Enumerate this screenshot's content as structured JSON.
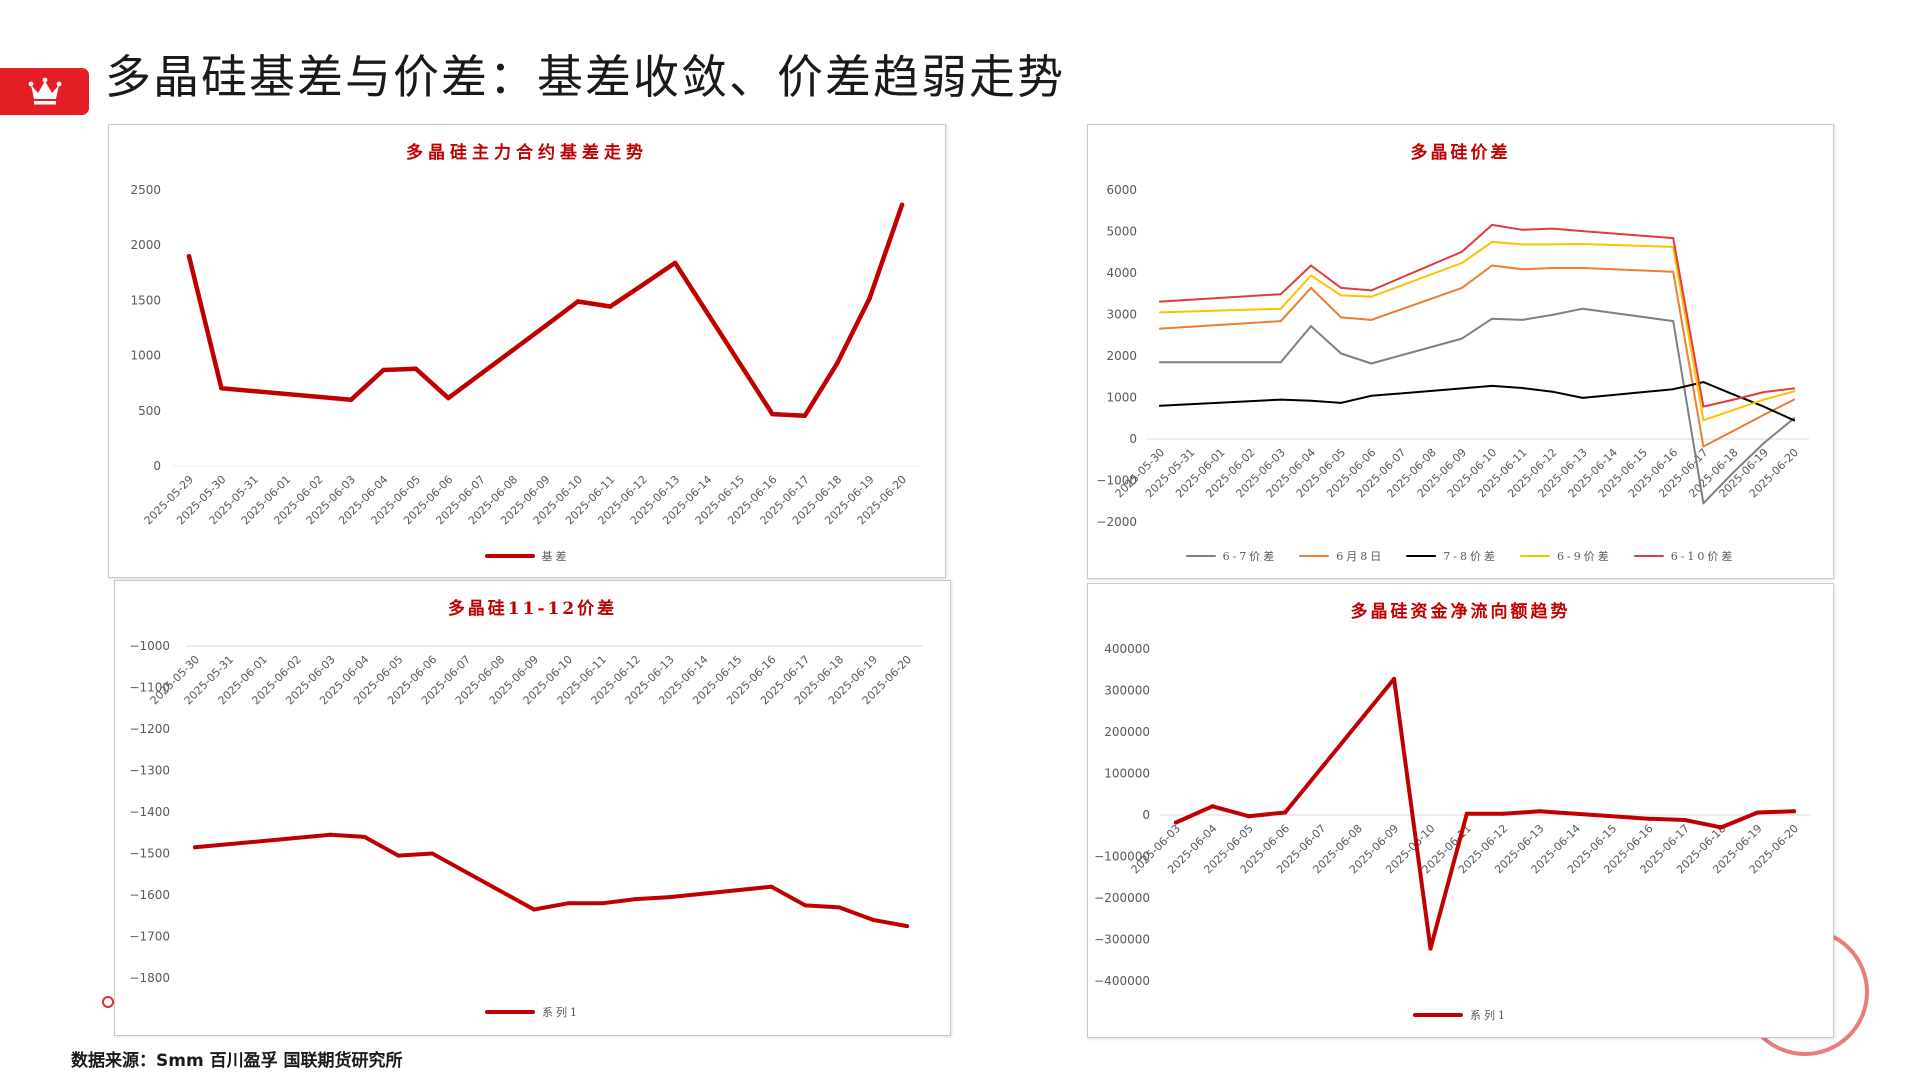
{
  "title": "多晶硅基差与价差：基差收敛、价差趋弱走势",
  "footer": "数据来源：Smm 百川盈孚 国联期货研究所",
  "colors": {
    "brand_red": "#E31E24",
    "chart_title": "#C00000",
    "text": "#1A1A1A"
  },
  "icons": {
    "badge": "crown-icon"
  },
  "chart_data": [
    {
      "type": "line",
      "title": "多晶硅主力合约基差走势",
      "xlabel": "",
      "ylabel": "",
      "ylim": [
        0,
        2500
      ],
      "yticks": [
        0,
        500,
        1000,
        1500,
        2000,
        2500
      ],
      "ytick_labels": [
        "0",
        "500",
        "1000",
        "1500",
        "2000",
        "2500"
      ],
      "grid": false,
      "legend": "bottom",
      "categories": [
        "2025-05-29",
        "2025-05-30",
        "2025-05-31",
        "2025-06-01",
        "2025-06-02",
        "2025-06-03",
        "2025-06-04",
        "2025-06-05",
        "2025-06-06",
        "2025-06-07",
        "2025-06-08",
        "2025-06-09",
        "2025-06-10",
        "2025-06-11",
        "2025-06-12",
        "2025-06-13",
        "2025-06-14",
        "2025-06-15",
        "2025-06-16",
        "2025-06-17",
        "2025-06-18",
        "2025-06-19",
        "2025-06-20"
      ],
      "series": [
        {
          "name": "基差",
          "color": "#C00000",
          "values": [
            1900,
            705,
            null,
            null,
            null,
            600,
            870,
            880,
            615,
            null,
            null,
            1270,
            1490,
            1445,
            1640,
            1840,
            null,
            null,
            470,
            455,
            930,
            1520,
            2365
          ]
        }
      ]
    },
    {
      "type": "line",
      "title": "多晶硅价差",
      "xlabel": "",
      "ylabel": "",
      "ylim": [
        -2000,
        6000
      ],
      "yticks": [
        -2000,
        -1000,
        0,
        1000,
        2000,
        3000,
        4000,
        5000,
        6000
      ],
      "ytick_labels": [
        "−2000",
        "−1000",
        "0",
        "1000",
        "2000",
        "3000",
        "4000",
        "5000",
        "6000"
      ],
      "grid": false,
      "legend": "bottom",
      "categories": [
        "2025-05-30",
        "2025-05-31",
        "2025-06-01",
        "2025-06-02",
        "2025-06-03",
        "2025-06-04",
        "2025-06-05",
        "2025-06-06",
        "2025-06-07",
        "2025-06-08",
        "2025-06-09",
        "2025-06-10",
        "2025-06-11",
        "2025-06-12",
        "2025-06-13",
        "2025-06-14",
        "2025-06-15",
        "2025-06-16",
        "2025-06-17",
        "2025-06-18",
        "2025-06-19",
        "2025-06-20"
      ],
      "series": [
        {
          "name": "6-7价差",
          "color": "#808080",
          "values": [
            1850,
            null,
            null,
            null,
            1850,
            2720,
            2060,
            1820,
            null,
            null,
            2420,
            2900,
            2870,
            2990,
            3140,
            null,
            null,
            2840,
            -1550,
            -800,
            -100,
            500
          ]
        },
        {
          "name": "6月8日",
          "color": "#ED7D31",
          "values": [
            2660,
            null,
            null,
            null,
            2840,
            3640,
            2930,
            2870,
            null,
            null,
            3640,
            4180,
            4090,
            4120,
            4120,
            null,
            null,
            4030,
            -180,
            200,
            580,
            950
          ]
        },
        {
          "name": "7-8价差",
          "color": "#000000",
          "values": [
            800,
            null,
            null,
            null,
            950,
            920,
            870,
            1040,
            null,
            null,
            1220,
            1280,
            1230,
            1140,
            990,
            null,
            null,
            1200,
            1370,
            1070,
            780,
            450
          ]
        },
        {
          "name": "6-9价差",
          "color": "#FFC000",
          "values": [
            3050,
            null,
            null,
            null,
            3140,
            3940,
            3460,
            3430,
            null,
            null,
            4240,
            4750,
            4690,
            4690,
            4700,
            null,
            null,
            4630,
            450,
            700,
            950,
            1150
          ]
        },
        {
          "name": "6-10价差",
          "color": "#E03C3C",
          "values": [
            3310,
            null,
            null,
            null,
            3490,
            4180,
            3640,
            3580,
            null,
            null,
            4510,
            5160,
            5040,
            5070,
            5010,
            null,
            null,
            4840,
            780,
            950,
            1130,
            1220
          ]
        }
      ]
    },
    {
      "type": "line",
      "title": "多晶硅11-12价差",
      "xlabel": "",
      "ylabel": "",
      "ylim": [
        -1800,
        -1000
      ],
      "yticks": [
        -1000,
        -1100,
        -1200,
        -1300,
        -1400,
        -1500,
        -1600,
        -1700,
        -1800
      ],
      "ytick_labels": [
        "−1000",
        "−1100",
        "−1200",
        "−1300",
        "−1400",
        "−1500",
        "−1600",
        "−1700",
        "−1800"
      ],
      "grid": false,
      "legend": "bottom",
      "categories": [
        "2025-05-30",
        "2025-05-31",
        "2025-06-01",
        "2025-06-02",
        "2025-06-03",
        "2025-06-04",
        "2025-06-05",
        "2025-06-06",
        "2025-06-07",
        "2025-06-08",
        "2025-06-09",
        "2025-06-10",
        "2025-06-11",
        "2025-06-12",
        "2025-06-13",
        "2025-06-14",
        "2025-06-15",
        "2025-06-16",
        "2025-06-17",
        "2025-06-18",
        "2025-06-19",
        "2025-06-20"
      ],
      "series": [
        {
          "name": "系列1",
          "color": "#C00000",
          "values": [
            -1485,
            null,
            null,
            null,
            -1455,
            -1460,
            -1505,
            -1500,
            null,
            null,
            -1635,
            -1620,
            -1620,
            -1610,
            -1605,
            null,
            null,
            -1580,
            -1625,
            -1630,
            -1660,
            -1675
          ]
        }
      ]
    },
    {
      "type": "line",
      "title": "多晶硅资金净流向额趋势",
      "xlabel": "",
      "ylabel": "",
      "ylim": [
        -400000,
        400000
      ],
      "yticks": [
        -400000,
        -300000,
        -200000,
        -100000,
        0,
        100000,
        200000,
        300000,
        400000
      ],
      "ytick_labels": [
        "−400000",
        "−300000",
        "−200000",
        "−100000",
        "0",
        "100000",
        "200000",
        "300000",
        "400000"
      ],
      "grid": false,
      "legend": "bottom",
      "categories": [
        "2025-06-03",
        "2025-06-04",
        "2025-06-05",
        "2025-06-06",
        "2025-06-07",
        "2025-06-08",
        "2025-06-09",
        "2025-06-10",
        "2025-06-11",
        "2025-06-12",
        "2025-06-13",
        "2025-06-14",
        "2025-06-15",
        "2025-06-16",
        "2025-06-17",
        "2025-06-18",
        "2025-06-19",
        "2025-06-20"
      ],
      "series": [
        {
          "name": "系列1",
          "color": "#C00000",
          "values": [
            -18000,
            21000,
            -3000,
            6000,
            null,
            null,
            328000,
            -322000,
            3000,
            3000,
            9000,
            null,
            null,
            -9000,
            -12000,
            -30000,
            6000,
            9000
          ]
        }
      ]
    }
  ]
}
